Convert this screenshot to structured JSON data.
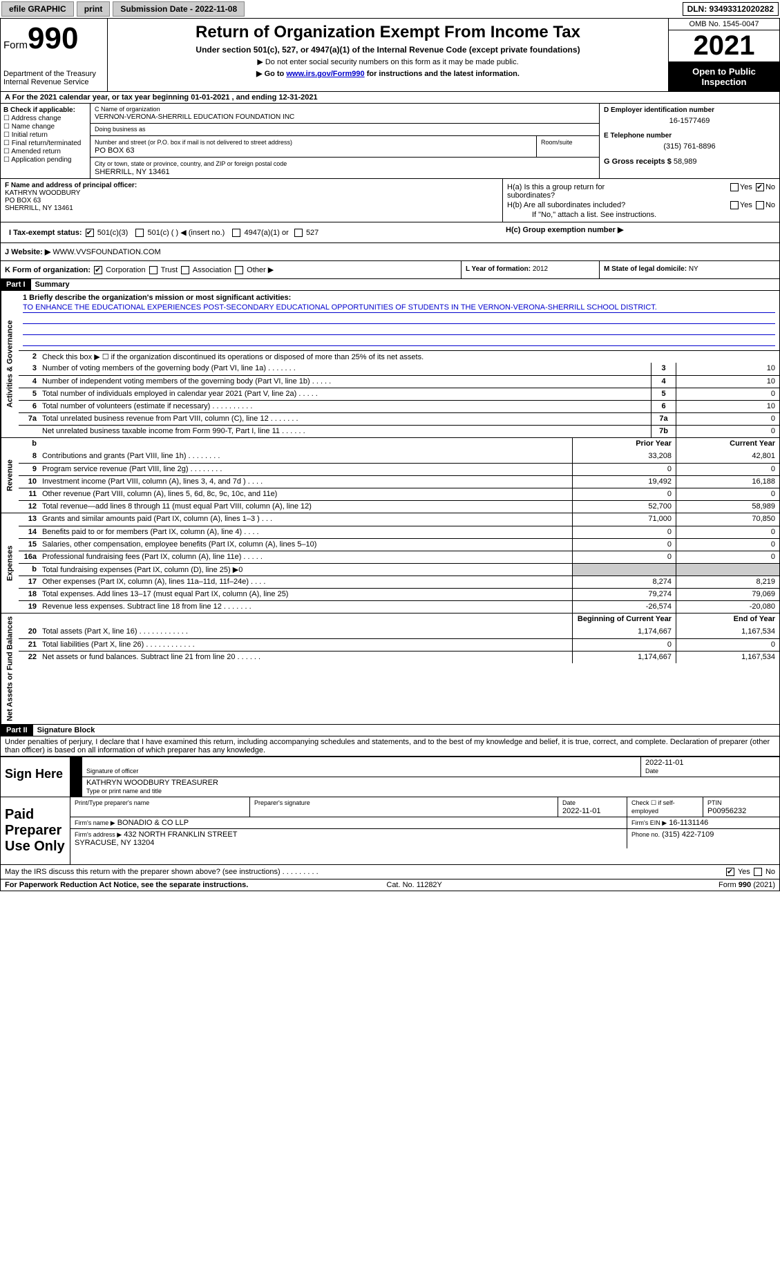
{
  "topbar": {
    "efile": "efile GRAPHIC",
    "print": "print",
    "submission_label": "Submission Date - ",
    "submission_date": "2022-11-08",
    "dln": "DLN: 93493312020282"
  },
  "header": {
    "form_word": "Form",
    "form_num": "990",
    "dept": "Department of the Treasury\nInternal Revenue Service",
    "title": "Return of Organization Exempt From Income Tax",
    "subtitle": "Under section 501(c), 527, or 4947(a)(1) of the Internal Revenue Code (except private foundations)",
    "note1": "▶ Do not enter social security numbers on this form as it may be made public.",
    "note2_pre": "▶ Go to ",
    "note2_link": "www.irs.gov/Form990",
    "note2_post": " for instructions and the latest information.",
    "omb": "OMB No. 1545-0047",
    "year": "2021",
    "open": "Open to Public Inspection"
  },
  "cal_year": "For the 2021 calendar year, or tax year beginning 01-01-2021    , and ending 12-31-2021",
  "section_b": {
    "label": "B Check if applicable:",
    "opts": [
      "Address change",
      "Name change",
      "Initial return",
      "Final return/terminated",
      "Amended return",
      "Application pending"
    ]
  },
  "section_c": {
    "name_label": "C Name of organization",
    "name": "VERNON-VERONA-SHERRILL EDUCATION FOUNDATION INC",
    "dba_label": "Doing business as",
    "street_label": "Number and street (or P.O. box if mail is not delivered to street address)",
    "room_label": "Room/suite",
    "street": "PO BOX 63",
    "city_label": "City or town, state or province, country, and ZIP or foreign postal code",
    "city": "SHERRILL, NY  13461"
  },
  "section_d": {
    "ein_label": "D Employer identification number",
    "ein": "16-1577469",
    "phone_label": "E Telephone number",
    "phone": "(315) 761-8896",
    "gross_label": "G Gross receipts $",
    "gross": "58,989"
  },
  "section_f": {
    "label": "F Name and address of principal officer:",
    "name": "KATHRYN WOODBURY",
    "street": "PO BOX 63",
    "city": "SHERRILL, NY  13461"
  },
  "section_h": {
    "ha": "H(a)  Is this a group return for subordinates?",
    "hb": "H(b)  Are all subordinates included?",
    "hb_note": "If \"No,\" attach a list. See instructions.",
    "hc": "H(c)  Group exemption number ▶",
    "yes": "Yes",
    "no": "No",
    "ha_answer": "No"
  },
  "tax_status": {
    "label": "I  Tax-exempt status:",
    "c3": "501(c)(3)",
    "c": "501(c) (  ) ◀ (insert no.)",
    "a1": "4947(a)(1) or",
    "s527": "527"
  },
  "website": {
    "label": "J  Website: ▶",
    "url": "WWW.VVSFOUNDATION.COM"
  },
  "form_org": {
    "label": "K Form of organization:",
    "corp": "Corporation",
    "trust": "Trust",
    "assoc": "Association",
    "other": "Other ▶"
  },
  "year_formation": {
    "label": "L Year of formation:",
    "val": "2012"
  },
  "state_domicile": {
    "label": "M State of legal domicile:",
    "val": "NY"
  },
  "part1": {
    "hdr": "Part I",
    "title": "Summary"
  },
  "summary": {
    "side_labels": [
      "Activities & Governance",
      "Revenue",
      "Expenses",
      "Net Assets or Fund Balances"
    ],
    "mission_label": "1   Briefly describe the organization's mission or most significant activities:",
    "mission": "TO ENHANCE THE EDUCATIONAL EXPERIENCES POST-SECONDARY EDUCATIONAL OPPORTUNITIES OF STUDENTS IN THE VERNON-VERONA-SHERRILL SCHOOL DISTRICT.",
    "line2": "Check this box ▶ ☐  if the organization discontinued its operations or disposed of more than 25% of its net assets.",
    "gov_lines": [
      {
        "n": "3",
        "txt": "Number of voting members of the governing body (Part VI, line 1a)   .    .    .    .    .    .    .",
        "box": "3",
        "val": "10"
      },
      {
        "n": "4",
        "txt": "Number of independent voting members of the governing body (Part VI, line 1b)   .    .    .    .    .",
        "box": "4",
        "val": "10"
      },
      {
        "n": "5",
        "txt": "Total number of individuals employed in calendar year 2021 (Part V, line 2a)   .    .    .    .    .",
        "box": "5",
        "val": "0"
      },
      {
        "n": "6",
        "txt": "Total number of volunteers (estimate if necessary)    .    .    .    .    .    .    .    .    .    .",
        "box": "6",
        "val": "10"
      },
      {
        "n": "7a",
        "txt": "Total unrelated business revenue from Part VIII, column (C), line 12   .    .    .    .    .    .    .",
        "box": "7a",
        "val": "0"
      },
      {
        "n": "",
        "txt": "Net unrelated business taxable income from Form 990-T, Part I, line 11   .    .    .    .    .    .",
        "box": "7b",
        "val": "0"
      }
    ],
    "col_prior": "Prior Year",
    "col_curr": "Current Year",
    "rev_lines": [
      {
        "n": "8",
        "txt": "Contributions and grants (Part VIII, line 1h)   .    .    .    .    .    .    .    .",
        "p": "33,208",
        "c": "42,801"
      },
      {
        "n": "9",
        "txt": "Program service revenue (Part VIII, line 2g)   .    .    .    .    .    .    .    .",
        "p": "0",
        "c": "0"
      },
      {
        "n": "10",
        "txt": "Investment income (Part VIII, column (A), lines 3, 4, and 7d )   .    .    .    .",
        "p": "19,492",
        "c": "16,188"
      },
      {
        "n": "11",
        "txt": "Other revenue (Part VIII, column (A), lines 5, 6d, 8c, 9c, 10c, and 11e)",
        "p": "0",
        "c": "0"
      },
      {
        "n": "12",
        "txt": "Total revenue—add lines 8 through 11 (must equal Part VIII, column (A), line 12)",
        "p": "52,700",
        "c": "58,989"
      }
    ],
    "exp_lines": [
      {
        "n": "13",
        "txt": "Grants and similar amounts paid (Part IX, column (A), lines 1–3 )   .    .    .",
        "p": "71,000",
        "c": "70,850"
      },
      {
        "n": "14",
        "txt": "Benefits paid to or for members (Part IX, column (A), line 4)   .    .    .    .",
        "p": "0",
        "c": "0"
      },
      {
        "n": "15",
        "txt": "Salaries, other compensation, employee benefits (Part IX, column (A), lines 5–10)",
        "p": "0",
        "c": "0"
      },
      {
        "n": "16a",
        "txt": "Professional fundraising fees (Part IX, column (A), line 11e)   .    .    .    .    .",
        "p": "0",
        "c": "0"
      },
      {
        "n": "b",
        "txt": "Total fundraising expenses (Part IX, column (D), line 25) ▶0",
        "p": "",
        "c": "",
        "shadeP": true,
        "shadeC": true
      },
      {
        "n": "17",
        "txt": "Other expenses (Part IX, column (A), lines 11a–11d, 11f–24e)   .    .    .    .",
        "p": "8,274",
        "c": "8,219"
      },
      {
        "n": "18",
        "txt": "Total expenses. Add lines 13–17 (must equal Part IX, column (A), line 25)",
        "p": "79,274",
        "c": "79,069"
      },
      {
        "n": "19",
        "txt": "Revenue less expenses. Subtract line 18 from line 12   .    .    .    .    .    .    .",
        "p": "-26,574",
        "c": "-20,080"
      }
    ],
    "col_beg": "Beginning of Current Year",
    "col_end": "End of Year",
    "net_lines": [
      {
        "n": "20",
        "txt": "Total assets (Part X, line 16)   .    .    .    .    .    .    .    .    .    .    .    .",
        "p": "1,174,667",
        "c": "1,167,534"
      },
      {
        "n": "21",
        "txt": "Total liabilities (Part X, line 26)   .    .    .    .    .    .    .    .    .    .    .    .",
        "p": "0",
        "c": "0"
      },
      {
        "n": "22",
        "txt": "Net assets or fund balances. Subtract line 21 from line 20   .    .    .    .    .    .",
        "p": "1,174,667",
        "c": "1,167,534"
      }
    ]
  },
  "part2": {
    "hdr": "Part II",
    "title": "Signature Block"
  },
  "perjury": "Under penalties of perjury, I declare that I have examined this return, including accompanying schedules and statements, and to the best of my knowledge and belief, it is true, correct, and complete. Declaration of preparer (other than officer) is based on all information of which preparer has any knowledge.",
  "sign": {
    "here": "Sign Here",
    "sig_officer": "Signature of officer",
    "date": "2022-11-01",
    "date_lbl": "Date",
    "name": "KATHRYN WOODBURY TREASURER",
    "name_lbl": "Type or print name and title"
  },
  "preparer": {
    "label": "Paid Preparer Use Only",
    "print_lbl": "Print/Type preparer's name",
    "sig_lbl": "Preparer's signature",
    "date_lbl": "Date",
    "date": "2022-11-01",
    "check_lbl": "Check ☐ if self-employed",
    "ptin_lbl": "PTIN",
    "ptin": "P00956232",
    "firm_name_lbl": "Firm's name     ▶",
    "firm_name": "BONADIO & CO LLP",
    "firm_ein_lbl": "Firm's EIN ▶",
    "firm_ein": "16-1131146",
    "firm_addr_lbl": "Firm's address ▶",
    "firm_addr": "432 NORTH FRANKLIN STREET\nSYRACUSE, NY  13204",
    "phone_lbl": "Phone no.",
    "phone": "(315) 422-7109"
  },
  "may_irs": "May the IRS discuss this return with the preparer shown above? (see instructions)   .    .    .    .    .    .    .    .    .",
  "footer": {
    "left": "For Paperwork Reduction Act Notice, see the separate instructions.",
    "cat": "Cat. No. 11282Y",
    "right": "Form 990 (2021)"
  },
  "colors": {
    "link": "#0000cc",
    "black": "#000000",
    "gray": "#cccccc"
  }
}
